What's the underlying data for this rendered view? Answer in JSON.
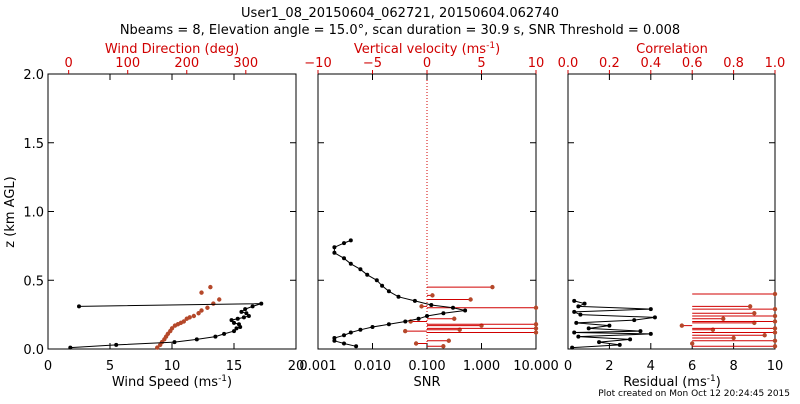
{
  "colors": {
    "primary": "#000000",
    "secondary": "#d00000",
    "points_secondary": "#b5482a"
  },
  "title": {
    "line1": "User1_08_20150604_062721, 20150604.062740",
    "line2": "Nbeams = 8, Elevation angle = 15.0°, scan duration = 30.9 s, SNR Threshold = 0.008"
  },
  "footer": "Plot created on Mon Oct 12 20:24:45 2015",
  "chart_data": [
    {
      "type": "scatter",
      "id": "wind",
      "ylabel": "z (km AGL)",
      "ylim": [
        0,
        2
      ],
      "yticks": [
        "0.0",
        "0.5",
        "1.0",
        "1.5",
        "2.0"
      ],
      "xlabel": "Wind Speed (ms",
      "xlabel_sup": "-1",
      "xlabel_end": ")",
      "xlim": [
        0,
        20
      ],
      "xticks": [
        "0",
        "5",
        "10",
        "15",
        "20"
      ],
      "top_label": "Wind Direction (deg)",
      "top_lim": [
        -35,
        385
      ],
      "top_ticks": [
        "0",
        "100",
        "200",
        "300"
      ],
      "primary": {
        "name": "Wind Speed",
        "x": [
          1.8,
          5.5,
          10.2,
          12.0,
          13.5,
          14.2,
          15.0,
          15.2,
          15.5,
          15.4,
          15.0,
          14.8,
          15.3,
          15.8,
          16.2,
          16.0,
          15.6,
          15.9,
          16.5,
          17.2,
          2.5
        ],
        "z": [
          0.01,
          0.03,
          0.05,
          0.07,
          0.09,
          0.11,
          0.13,
          0.15,
          0.16,
          0.18,
          0.19,
          0.21,
          0.22,
          0.23,
          0.24,
          0.26,
          0.27,
          0.29,
          0.31,
          0.33,
          0.31
        ]
      },
      "secondary": {
        "name": "Wind Direction",
        "x": [
          150,
          155,
          158,
          162,
          165,
          168,
          172,
          175,
          180,
          185,
          190,
          195,
          200,
          205,
          212,
          220,
          225,
          235,
          245,
          255,
          225,
          240
        ],
        "z": [
          0.01,
          0.03,
          0.05,
          0.07,
          0.09,
          0.11,
          0.13,
          0.15,
          0.17,
          0.18,
          0.19,
          0.2,
          0.22,
          0.23,
          0.24,
          0.26,
          0.28,
          0.3,
          0.33,
          0.36,
          0.41,
          0.45
        ]
      }
    },
    {
      "type": "scatter",
      "id": "snr",
      "xscale": "log",
      "xlabel": "SNR",
      "xlim": [
        0.001,
        10
      ],
      "xticks": [
        "0.001",
        "0.010",
        "0.100",
        "1.000",
        "10.000"
      ],
      "ylim": [
        0,
        2
      ],
      "threshold_x": 0.1,
      "top_label": "Vertical velocity (ms",
      "top_label_sup": "-1",
      "top_label_end": ")",
      "top_lim": [
        -10,
        10
      ],
      "top_ticks": [
        "−10",
        "−5",
        "0",
        "5",
        "10"
      ],
      "primary": {
        "name": "SNR",
        "x": [
          0.005,
          0.003,
          0.002,
          0.002,
          0.003,
          0.004,
          0.006,
          0.01,
          0.02,
          0.04,
          0.07,
          0.1,
          0.2,
          0.5,
          0.3,
          0.12,
          0.06,
          0.03,
          0.02,
          0.015,
          0.012,
          0.008,
          0.006,
          0.004,
          0.003,
          0.002,
          0.002,
          0.003,
          0.004
        ],
        "z": [
          0.02,
          0.04,
          0.06,
          0.08,
          0.1,
          0.12,
          0.14,
          0.16,
          0.18,
          0.2,
          0.22,
          0.24,
          0.26,
          0.28,
          0.3,
          0.32,
          0.35,
          0.38,
          0.42,
          0.46,
          0.5,
          0.54,
          0.58,
          0.62,
          0.66,
          0.7,
          0.74,
          0.77,
          0.79
        ]
      },
      "secondary": {
        "name": "Vertical velocity",
        "x": [
          1.5,
          -1.0,
          2.0,
          10.0,
          -2.0,
          3.0,
          10.0,
          5.0,
          10.0,
          -1.5,
          2.5,
          10.0,
          -0.5,
          4.0,
          0.5,
          6.0
        ],
        "z": [
          0.02,
          0.04,
          0.06,
          0.12,
          0.13,
          0.14,
          0.15,
          0.17,
          0.18,
          0.2,
          0.22,
          0.3,
          0.31,
          0.36,
          0.39,
          0.45
        ]
      }
    },
    {
      "type": "scatter",
      "id": "residual",
      "xlabel": "Residual (ms",
      "xlabel_sup": "-1",
      "xlabel_end": ")",
      "xlim": [
        0,
        10
      ],
      "xticks": [
        "0",
        "2",
        "4",
        "6",
        "8",
        "10"
      ],
      "ylim": [
        0,
        2
      ],
      "top_label": "Correlation",
      "top_lim": [
        0,
        1
      ],
      "top_ticks": [
        "0.0",
        "0.2",
        "0.4",
        "0.6",
        "0.8",
        "1.0"
      ],
      "primary": {
        "name": "Residual",
        "x": [
          0.2,
          2.5,
          1.5,
          3.0,
          0.5,
          4.0,
          0.3,
          3.5,
          1.0,
          2.0,
          0.4,
          3.2,
          4.2,
          0.6,
          0.3,
          4.0,
          0.5,
          0.8,
          0.3
        ],
        "z": [
          0.01,
          0.03,
          0.05,
          0.07,
          0.09,
          0.11,
          0.12,
          0.13,
          0.15,
          0.17,
          0.19,
          0.21,
          0.23,
          0.25,
          0.27,
          0.29,
          0.31,
          0.33,
          0.35
        ]
      },
      "secondary": {
        "name": "Correlation",
        "x": [
          1.0,
          0.6,
          1.0,
          0.8,
          0.95,
          1.0,
          0.7,
          1.0,
          0.55,
          0.9,
          1.0,
          0.75,
          1.0,
          0.9,
          1.0,
          0.88,
          1.0
        ],
        "z": [
          0.02,
          0.04,
          0.06,
          0.08,
          0.1,
          0.12,
          0.14,
          0.15,
          0.17,
          0.19,
          0.2,
          0.22,
          0.24,
          0.26,
          0.29,
          0.31,
          0.4
        ]
      }
    }
  ]
}
